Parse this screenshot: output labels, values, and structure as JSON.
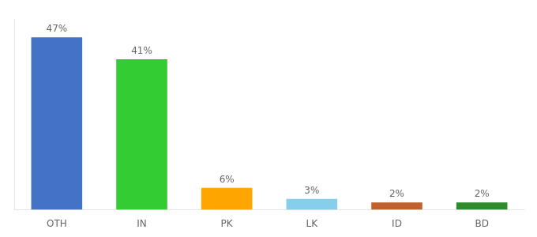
{
  "chart_data": {
    "type": "bar",
    "categories": [
      "OTH",
      "IN",
      "PK",
      "LK",
      "ID",
      "BD"
    ],
    "values": [
      47,
      41,
      6,
      3,
      2,
      2
    ],
    "value_labels": [
      "47%",
      "41%",
      "6%",
      "3%",
      "2%",
      "2%"
    ],
    "colors": [
      "#4472C4",
      "#33CC33",
      "#FFA500",
      "#87CEEB",
      "#C0622D",
      "#2D8A2D"
    ],
    "ylim": [
      0,
      52
    ],
    "grid": false,
    "data_labels": true,
    "tick_labels": "x"
  }
}
